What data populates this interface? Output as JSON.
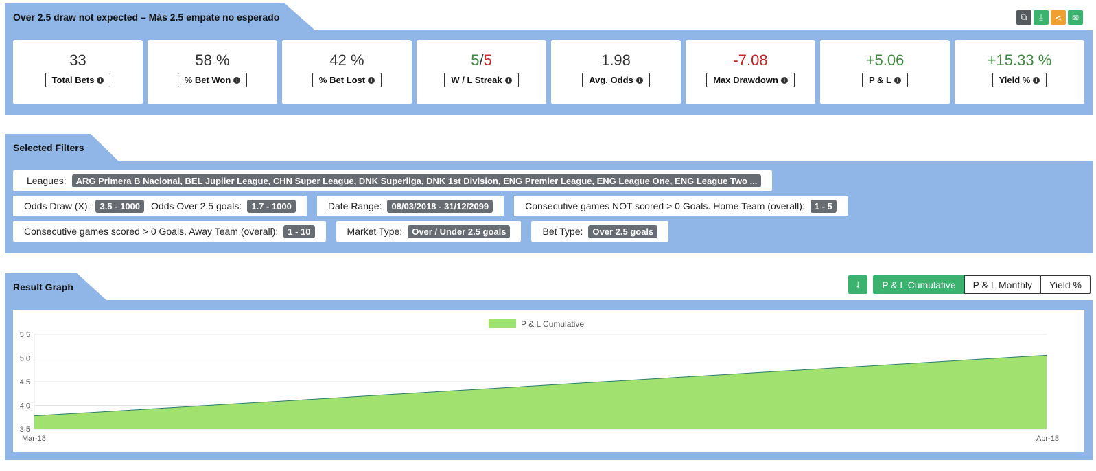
{
  "header": {
    "title": "Over 2.5 draw not expected – Más 2.5 empate no esperado",
    "icons": [
      {
        "name": "copy-icon",
        "glyph": "⧉",
        "color": "#555a5f"
      },
      {
        "name": "download-icon",
        "glyph": "⤓",
        "color": "#3bb36f"
      },
      {
        "name": "share-icon",
        "glyph": "⋖",
        "color": "#f0a030"
      },
      {
        "name": "email-icon",
        "glyph": "✉",
        "color": "#3bb36f"
      }
    ]
  },
  "stats": {
    "total_bets": {
      "value": "33",
      "label": "Total Bets"
    },
    "bet_won": {
      "value": "58 %",
      "label": "% Bet Won"
    },
    "bet_lost": {
      "value": "42 %",
      "label": "% Bet Lost"
    },
    "streak": {
      "win": "5",
      "sep": "/",
      "loss": "5",
      "label": "W / L Streak"
    },
    "avg_odds": {
      "value": "1.98",
      "label": "Avg. Odds"
    },
    "max_drawdown": {
      "value": "-7.08",
      "label": "Max Drawdown"
    },
    "pl": {
      "value": "+5.06",
      "label": "P & L"
    },
    "yield": {
      "value": "+15.33 %",
      "label": "Yield %"
    }
  },
  "filters": {
    "title": "Selected Filters",
    "leagues_label": "Leagues:",
    "leagues_value": "ARG Primera B Nacional, BEL Jupiler League, CHN Super League, DNK Superliga, DNK 1st Division, ENG Premier League, ENG League One, ENG League Two ...",
    "odds_draw_label": "Odds Draw (X):",
    "odds_draw_value": "3.5 - 1000",
    "odds_over_label": "Odds Over 2.5 goals:",
    "odds_over_value": "1.7 - 1000",
    "date_range_label": "Date Range:",
    "date_range_value": "08/03/2018 - 31/12/2099",
    "home_not_scored_label": "Consecutive games NOT scored > 0 Goals. Home Team (overall):",
    "home_not_scored_value": "1 - 5",
    "away_scored_label": "Consecutive games scored > 0 Goals. Away Team (overall):",
    "away_scored_value": "1 - 10",
    "market_type_label": "Market Type:",
    "market_type_value": "Over / Under 2.5 goals",
    "bet_type_label": "Bet Type:",
    "bet_type_value": "Over 2.5 goals"
  },
  "graph": {
    "title": "Result Graph",
    "download_icon": "download-icon",
    "tabs": {
      "cumulative": "P & L Cumulative",
      "monthly": "P & L Monthly",
      "yield": "Yield %"
    },
    "active_tab": "cumulative"
  },
  "chart_data": {
    "type": "area",
    "x": [
      "Mar-18",
      "Apr-18"
    ],
    "series": [
      {
        "name": "P & L Cumulative",
        "values": [
          3.78,
          5.06
        ],
        "color": "#a1e170",
        "line_color": "#2a7a6a"
      }
    ],
    "ylim": [
      3.5,
      5.5
    ],
    "yticks": [
      "3.5",
      "4.0",
      "4.5",
      "5.0",
      "5.5"
    ],
    "grid": true,
    "legend": "top-center"
  }
}
